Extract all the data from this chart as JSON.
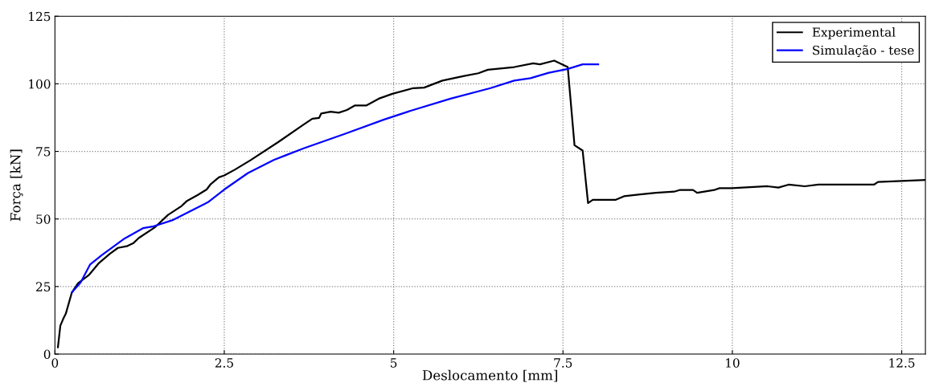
{
  "chart_data": {
    "type": "line",
    "xlabel": "Deslocamento [mm]",
    "ylabel": "Força [kN]",
    "xlim": [
      0,
      12.85
    ],
    "ylim": [
      0,
      125
    ],
    "xticks": [
      0,
      2.5,
      5,
      7.5,
      10,
      12.5
    ],
    "yticks": [
      0,
      25,
      50,
      75,
      100,
      125
    ],
    "grid": true,
    "legend": "top right",
    "line_style": "solid",
    "marker": "none",
    "series": [
      {
        "name": "Experimental",
        "color": "#000000",
        "x": [
          0.044,
          0.08,
          0.12,
          0.16,
          0.25,
          0.34,
          0.5,
          0.65,
          0.81,
          0.93,
          1.06,
          1.16,
          1.24,
          1.48,
          1.67,
          1.87,
          1.95,
          2.11,
          2.24,
          2.3,
          2.42,
          2.5,
          2.66,
          2.89,
          3.3,
          3.68,
          3.8,
          3.9,
          3.93,
          4.07,
          4.19,
          4.31,
          4.43,
          4.6,
          4.78,
          4.98,
          5.29,
          5.45,
          5.72,
          6.04,
          6.25,
          6.39,
          6.78,
          7.06,
          7.16,
          7.37,
          7.57,
          7.67,
          7.79,
          7.87,
          7.94,
          8.28,
          8.4,
          8.61,
          8.87,
          9.14,
          9.22,
          9.42,
          9.48,
          9.73,
          9.81,
          9.99,
          10.52,
          10.68,
          10.83,
          11.07,
          11.27,
          12.09,
          12.15,
          12.84
        ],
        "values": [
          2.5,
          10.5,
          12.9,
          14.9,
          22.8,
          26.2,
          29.2,
          33.7,
          37.1,
          39.3,
          39.9,
          41.1,
          43.0,
          47.0,
          51.5,
          54.8,
          56.7,
          58.9,
          60.9,
          62.9,
          65.4,
          66.1,
          68.3,
          71.8,
          78.5,
          85.1,
          87.1,
          87.4,
          89.0,
          89.7,
          89.3,
          90.3,
          92.0,
          92.0,
          94.5,
          96.3,
          98.4,
          98.6,
          101.2,
          102.9,
          103.9,
          105.2,
          106.2,
          107.6,
          107.2,
          108.6,
          106.2,
          77.3,
          75.3,
          55.9,
          57.1,
          57.1,
          58.4,
          59.0,
          59.7,
          60.1,
          60.7,
          60.7,
          59.7,
          60.7,
          61.4,
          61.4,
          62.1,
          61.6,
          62.7,
          62.1,
          62.7,
          62.7,
          63.7,
          64.4
        ]
      },
      {
        "name": "Simulação - tese",
        "color": "#0000ff",
        "x": [
          0.25,
          0.38,
          0.52,
          0.69,
          1.03,
          1.3,
          1.46,
          1.73,
          2.26,
          2.5,
          2.85,
          3.23,
          3.4,
          3.68,
          4.27,
          4.86,
          5.25,
          5.84,
          6.43,
          6.78,
          7.02,
          7.29,
          7.57,
          7.79,
          8.02
        ],
        "values": [
          22.8,
          26.5,
          33.2,
          36.6,
          42.8,
          46.6,
          47.3,
          49.5,
          56.2,
          60.9,
          67.0,
          71.8,
          73.5,
          76.2,
          81.4,
          86.8,
          90.0,
          94.5,
          98.4,
          101.2,
          102.1,
          104.1,
          105.5,
          107.2,
          107.2
        ]
      }
    ]
  }
}
